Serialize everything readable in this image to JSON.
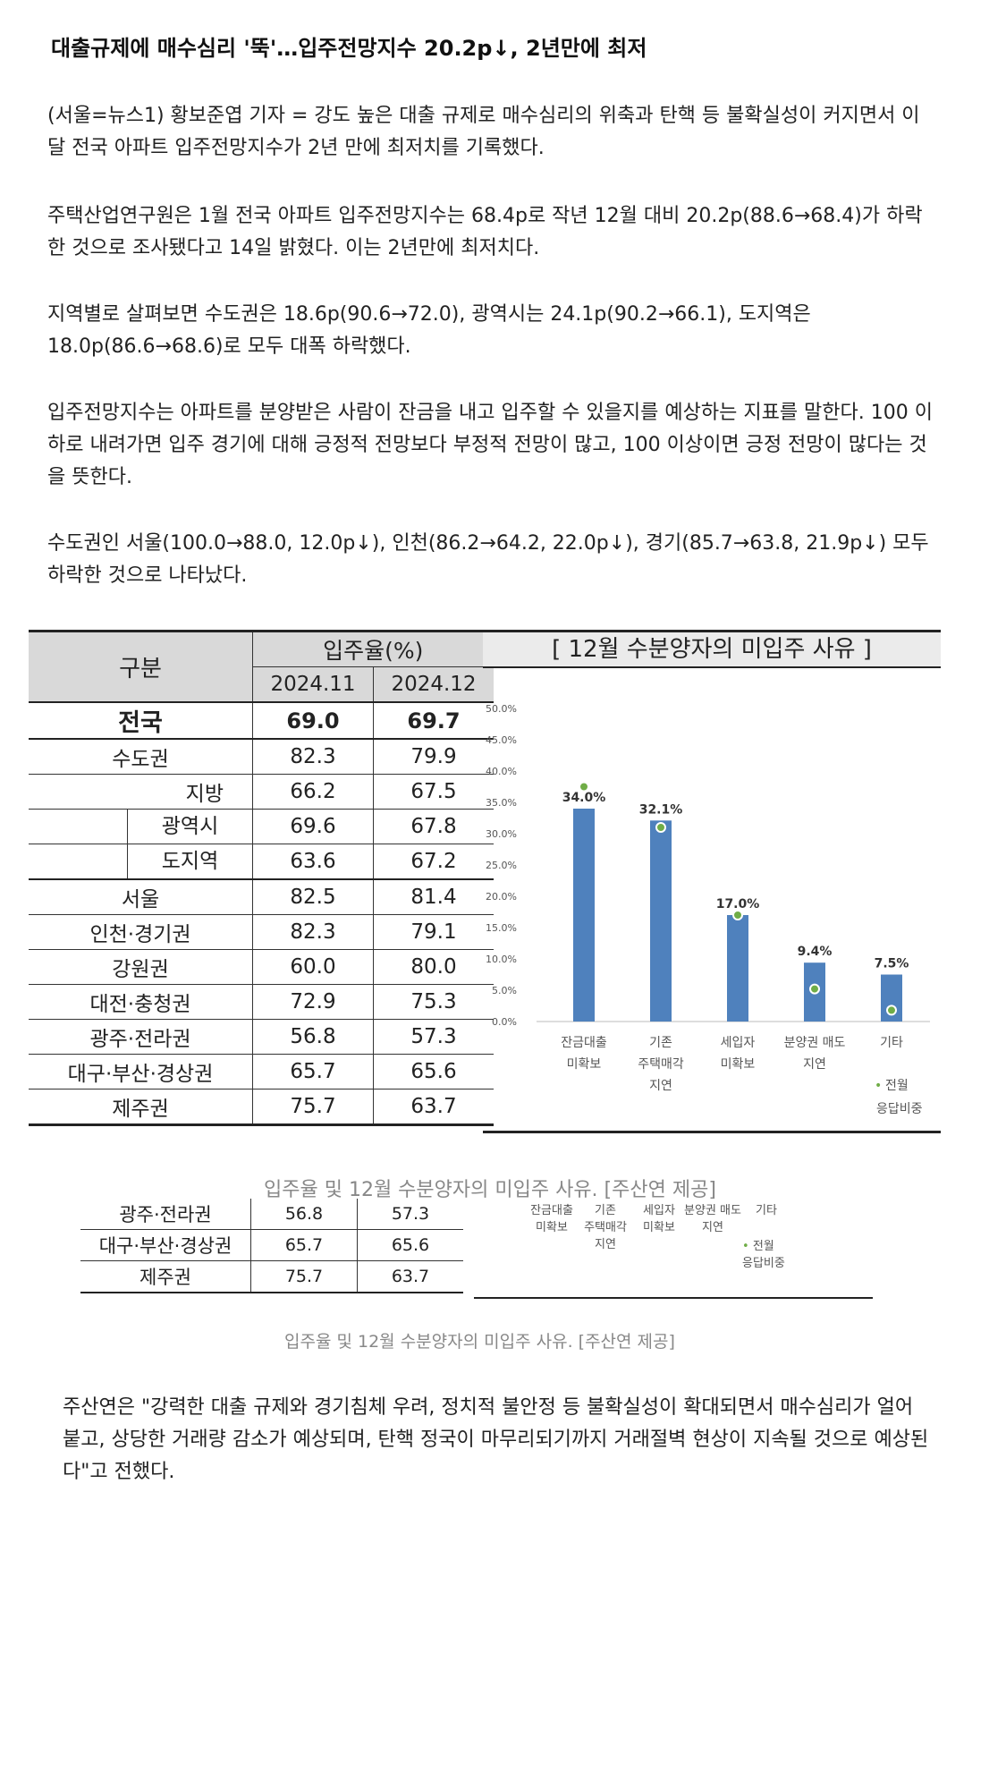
{
  "article": {
    "title": "대출규제에 매수심리 '뚝'…입주전망지수 20.2p↓, 2년만에 최저",
    "paragraphs": [
      "(서울=뉴스1) 황보준엽 기자 = 강도 높은 대출 규제로 매수심리의 위축과 탄핵 등 불확실성이 커지면서 이달 전국 아파트 입주전망지수가 2년 만에 최저치를 기록했다.",
      "주택산업연구원은 1월 전국 아파트 입주전망지수는 68.4p로 작년 12월 대비 20.2p(88.6→68.4)가 하락한 것으로 조사됐다고 14일 밝혔다. 이는 2년만에 최저치다.",
      "지역별로 살펴보면 수도권은 18.6p(90.6→72.0), 광역시는 24.1p(90.2→66.1), 도지역은 18.0p(86.6→68.6)로 모두 대폭 하락했다.",
      "입주전망지수는 아파트를 분양받은 사람이 잔금을 내고 입주할 수 있을지를 예상하는 지표를 말한다. 100 이하로 내려가면 입주 경기에 대해 긍정적 전망보다 부정적 전망이 많고, 100 이상이면 긍정 전망이 많다는 것을 뜻한다.",
      "수도권인 서울(100.0→88.0, 12.0p↓), 인천(86.2→64.2, 22.0p↓), 경기(85.7→63.8, 21.9p↓) 모두 하락한 것으로 나타났다.",
      "주산연은 \"강력한 대출 규제와 경기침체 우려, 정치적 불안정 등 불확실성이 확대되면서 매수심리가 얼어붙고, 상당한 거래량 감소가 예상되며, 탄핵 정국이 마무리되기까지 거래절벽 현상이 지속될 것으로 예상된다\"고 전했다."
    ],
    "caption": "입주율 및 12월 수분양자의 미입주 사유. [주산연 제공]"
  },
  "table": {
    "header_group": "구분",
    "header_rate": "입주율(%)",
    "months": [
      "2024.11",
      "2024.12"
    ],
    "rows": [
      {
        "label": "전국",
        "v1": "69.0",
        "v2": "69.7"
      },
      {
        "label": "수도권",
        "v1": "82.3",
        "v2": "79.9"
      },
      {
        "label": "지방",
        "v1": "66.2",
        "v2": "67.5"
      },
      {
        "label": "광역시",
        "v1": "69.6",
        "v2": "67.8"
      },
      {
        "label": "도지역",
        "v1": "63.6",
        "v2": "67.2"
      },
      {
        "label": "서울",
        "v1": "82.5",
        "v2": "81.4"
      },
      {
        "label": "인천·경기권",
        "v1": "82.3",
        "v2": "79.1"
      },
      {
        "label": "강원권",
        "v1": "60.0",
        "v2": "80.0"
      },
      {
        "label": "대전·충청권",
        "v1": "72.9",
        "v2": "75.3"
      },
      {
        "label": "광주·전라권",
        "v1": "56.8",
        "v2": "57.3"
      },
      {
        "label": "대구·부산·경상권",
        "v1": "65.7",
        "v2": "65.6"
      },
      {
        "label": "제주권",
        "v1": "75.7",
        "v2": "63.7"
      }
    ]
  },
  "chart_data": {
    "type": "bar",
    "title": "[ 12월 수분양자의 미입주 사유 ]",
    "categories": [
      [
        "잔금대출",
        "미확보"
      ],
      [
        "기존",
        "주택매각",
        "지연"
      ],
      [
        "세입자",
        "미확보"
      ],
      [
        "분양권 매도",
        "지연"
      ],
      [
        "기타"
      ]
    ],
    "series": [
      {
        "values": [
          34.0,
          32.1,
          17.0,
          9.4,
          7.5
        ],
        "color": "#4f81bd"
      },
      {
        "name": "전월 응답비중",
        "values": [
          37.5,
          31.0,
          17.0,
          5.2,
          1.8
        ],
        "color": "#70ad47"
      }
    ],
    "value_labels": [
      "34.0%",
      "32.1%",
      "17.0%",
      "9.4%",
      "7.5%"
    ],
    "yticks": [
      "0.0%",
      "5.0%",
      "10.0%",
      "15.0%",
      "20.0%",
      "25.0%",
      "30.0%",
      "35.0%",
      "40.0%",
      "45.0%",
      "50.0%"
    ],
    "ylim": [
      0,
      50
    ],
    "legend": {
      "marker": "•",
      "line1": "전월",
      "line2": "응답비중",
      "position": "bottom-right"
    }
  },
  "second_table": {
    "rows": [
      {
        "label": "광주·전라권",
        "v1": "56.8",
        "v2": "57.3"
      },
      {
        "label": "대구·부산·경상권",
        "v1": "65.7",
        "v2": "65.6"
      },
      {
        "label": "제주권",
        "v1": "75.7",
        "v2": "63.7"
      }
    ]
  }
}
